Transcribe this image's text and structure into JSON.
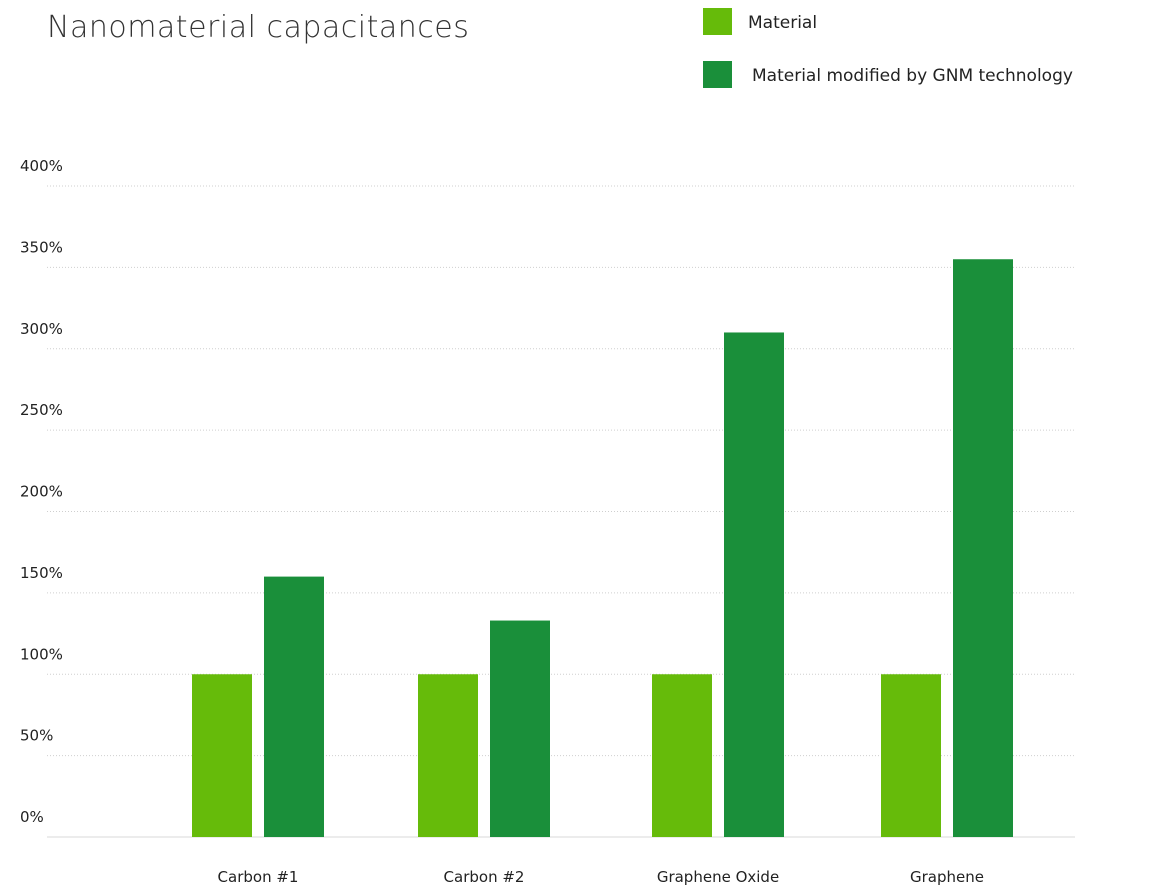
{
  "chart_data": {
    "type": "bar",
    "title": "Nanomaterial capacitances",
    "xlabel": "",
    "ylabel": "",
    "categories": [
      "Carbon #1",
      "Carbon #2",
      "Graphene Oxide",
      "Graphene"
    ],
    "series": [
      {
        "name": "Material",
        "color": "#66bb0a",
        "values": [
          100,
          100,
          100,
          100
        ]
      },
      {
        "name": "Material modified by GNM technology",
        "color": "#1a8f3a",
        "values": [
          160,
          133,
          310,
          355
        ]
      }
    ],
    "ylim": [
      0,
      400
    ],
    "yticks": [
      {
        "value": 0,
        "label": "0%"
      },
      {
        "value": 50,
        "label": "50%"
      },
      {
        "value": 100,
        "label": "100%"
      },
      {
        "value": 150,
        "label": "150%"
      },
      {
        "value": 200,
        "label": "200%"
      },
      {
        "value": 250,
        "label": "250%"
      },
      {
        "value": 300,
        "label": "300%"
      },
      {
        "value": 350,
        "label": "350%"
      },
      {
        "value": 400,
        "label": "400%"
      }
    ],
    "grid": true,
    "legend_position": "top-right"
  }
}
